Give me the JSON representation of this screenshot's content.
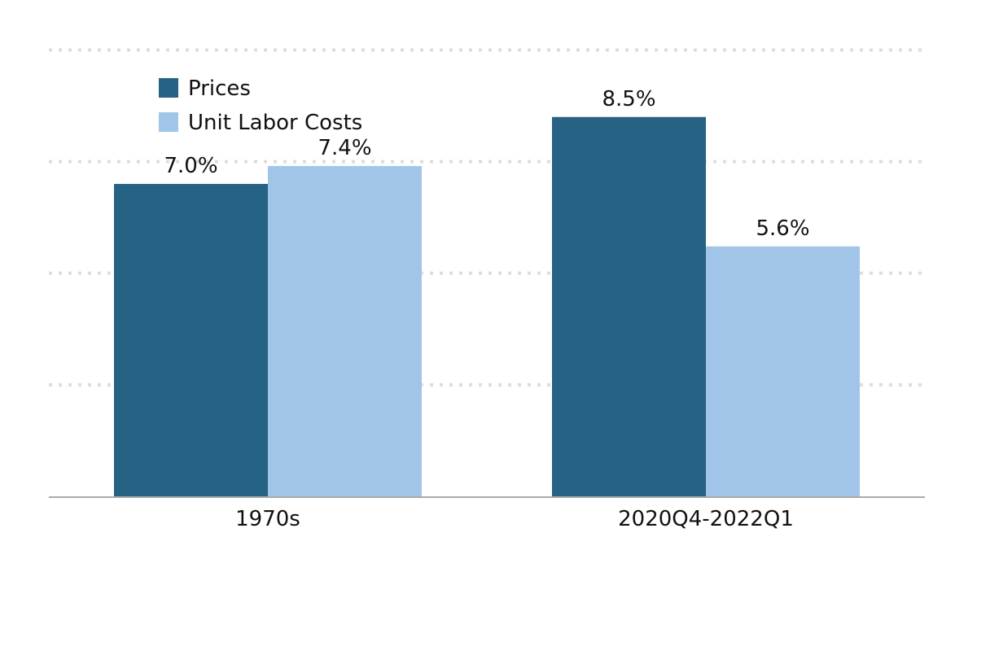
{
  "chart_data": {
    "type": "bar",
    "categories": [
      "1970s",
      "2020Q4-2022Q1"
    ],
    "series": [
      {
        "name": "Prices",
        "values": [
          7.0,
          8.5
        ],
        "labels": [
          "7.0%",
          "8.5%"
        ],
        "color": "#256283"
      },
      {
        "name": "Unit Labor Costs",
        "values": [
          7.4,
          5.6
        ],
        "labels": [
          "7.4%",
          "5.6%"
        ],
        "color": "#a0c5e8"
      }
    ],
    "ylim": [
      0,
      10
    ],
    "gridlines": [
      2.5,
      5,
      7.5,
      10
    ],
    "grid": true,
    "grid_color": "#dddddd",
    "axis_color": "#aaaaaa",
    "legend_position": "top-left"
  }
}
